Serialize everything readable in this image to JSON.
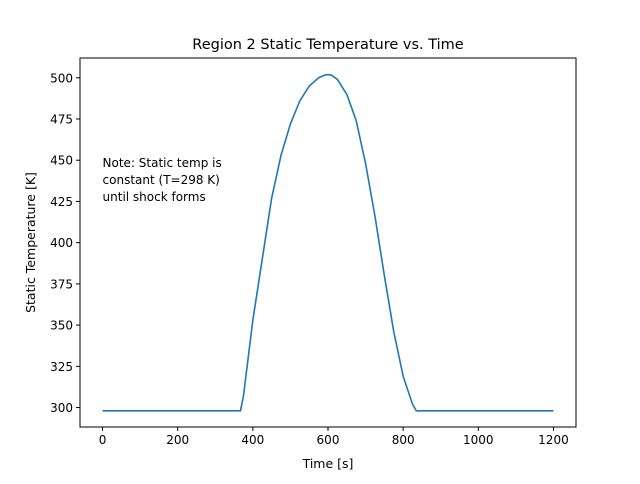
{
  "chart_data": {
    "type": "line",
    "title": "Region 2 Static Temperature vs. Time",
    "xlabel": "Time [s]",
    "ylabel": "Static Temperature [K]",
    "xlim": [
      -60,
      1260
    ],
    "ylim": [
      288.2,
      512.0
    ],
    "xticks": [
      0,
      200,
      400,
      600,
      800,
      1000,
      1200
    ],
    "yticks": [
      300,
      325,
      350,
      375,
      400,
      425,
      450,
      475,
      500
    ],
    "grid": false,
    "legend": "none",
    "annotation": {
      "lines": [
        "Note: Static temp is",
        "constant (T=298 K)",
        "until shock forms"
      ],
      "x": 0,
      "y": 450
    },
    "series": [
      {
        "color": "#1f77b4",
        "x": [
          0,
          100,
          200,
          300,
          367,
          375,
          400,
          425,
          450,
          475,
          500,
          525,
          550,
          575,
          590,
          600,
          610,
          625,
          650,
          675,
          700,
          725,
          750,
          775,
          800,
          825,
          835,
          900,
          1000,
          1100,
          1200
        ],
        "y": [
          298,
          298,
          298,
          298,
          298,
          307,
          353,
          390,
          427,
          453,
          472,
          486,
          495,
          500,
          501.5,
          502,
          501.5,
          499,
          490,
          474,
          448,
          416,
          380,
          346,
          319,
          302,
          298,
          298,
          298,
          298,
          298
        ]
      }
    ]
  }
}
